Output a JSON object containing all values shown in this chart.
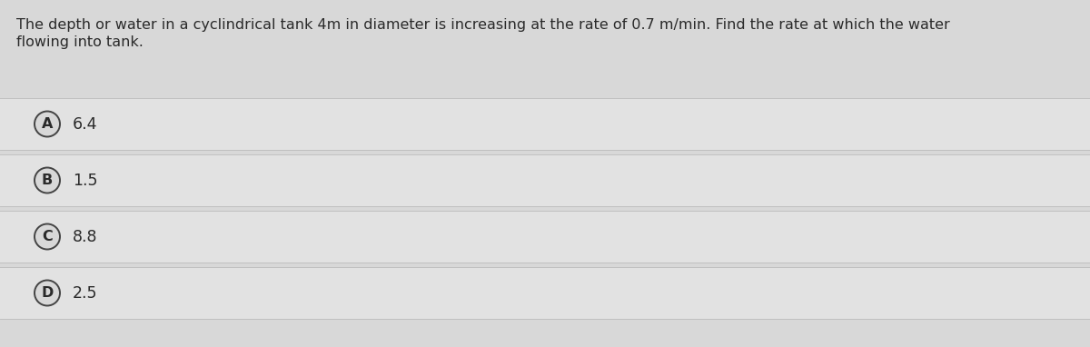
{
  "question_line1": "The depth or water in a cyclindrical tank 4m in diameter is increasing at the rate of 0.7 m/min. Find the rate at which the water",
  "question_line2": "flowing into tank.",
  "options": [
    {
      "label": "A",
      "value": "6.4"
    },
    {
      "label": "B",
      "value": "1.5"
    },
    {
      "label": "C",
      "value": "8.8"
    },
    {
      "label": "D",
      "value": "2.5"
    }
  ],
  "bg_color": "#d8d8d8",
  "option_row_bg": "#e2e2e2",
  "divider_color": "#c0c0c0",
  "text_color": "#2a2a2a",
  "circle_edge_color": "#444444",
  "circle_face_color": "#d8d8d8",
  "question_fontsize": 11.5,
  "option_fontsize": 12.5,
  "label_fontsize": 11.5,
  "fig_width": 12.0,
  "fig_height": 3.82
}
